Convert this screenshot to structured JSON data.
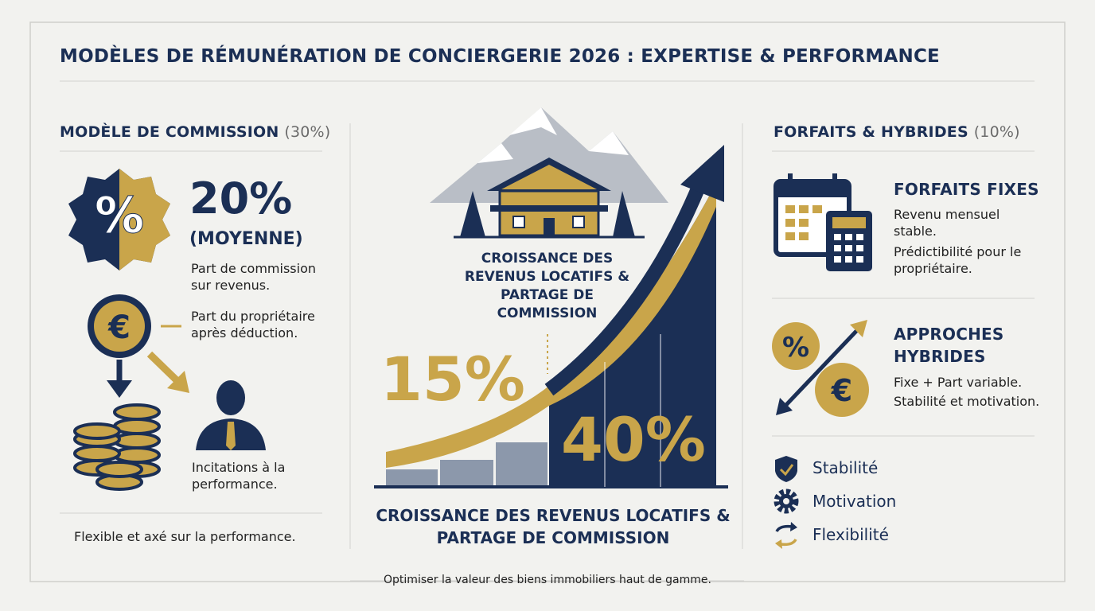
{
  "header": {
    "title": "MODÈLES DE RÉMUNÉRATION DE CONCIERGERIE 2026 : EXPERTISE & PERFORMANCE"
  },
  "commission": {
    "heading": "MODÈLE DE COMMISSION",
    "share": "(30%)",
    "figure": "20%",
    "figure_note": "(MOYENNE)",
    "items": [
      "Part de commission sur revenus.",
      "Part du propriétaire après déduction.",
      "Incitations à la performance."
    ],
    "footer": "Flexible et axé sur la performance."
  },
  "growth": {
    "inner_caption": "CROISSANCE DES REVENUS LOCATIFS & PARTAGE DE COMMISSION",
    "low_figure": "15%",
    "high_figure": "40%",
    "caption": "CROISSANCE DES REVENUS LOCATIFS & PARTAGE DE COMMISSION"
  },
  "flat_fees": {
    "heading": "FORFAITS & HYBRIDES",
    "share": "(10%)",
    "fixed": {
      "title": "FORFAITS FIXES",
      "items": [
        "Revenu mensuel stable.",
        "Prédictibilité pour le propriétaire."
      ]
    },
    "hybrid": {
      "title": "APPROCHES HYBRIDES",
      "items": [
        "Fixe + Part variable.",
        "Stabilité et motivation."
      ]
    }
  },
  "benefits": [
    "Stabilité",
    "Motivation",
    "Flexibilité"
  ],
  "footer": "Optimiser la valeur des biens immobiliers haut de gamme."
}
